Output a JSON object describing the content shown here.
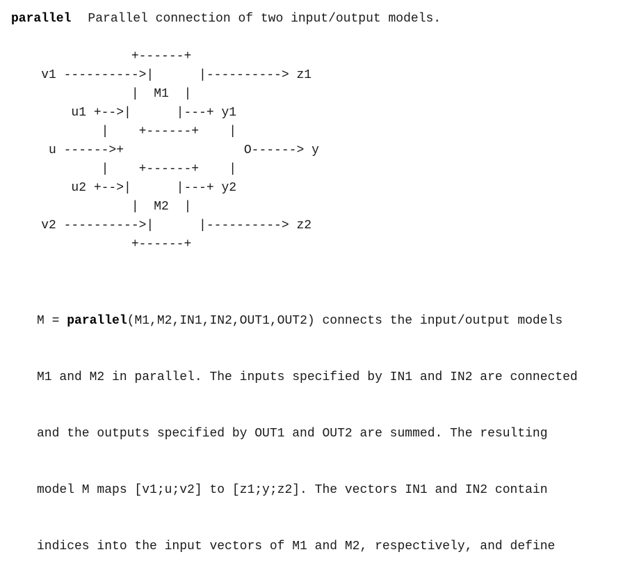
{
  "header": {
    "function_name": "parallel",
    "summary": "Parallel connection of two input/output models."
  },
  "diagram": {
    "lines": [
      "                +------+",
      "    v1 ---------->|      |----------> z1",
      "                |  M1  |",
      "        u1 +-->|      |---+ y1",
      "            |    +------+    |",
      "     u ------>+                O------> y",
      "            |    +------+    |",
      "        u2 +-->|      |---+ y2",
      "                |  M2  |",
      "    v2 ---------->|      |----------> z2",
      "                +------+"
    ]
  },
  "description": {
    "line1_prefix": "M = ",
    "line1_bold": "parallel",
    "line1_suffix": "(M1,M2,IN1,IN2,OUT1,OUT2) connects the input/output models",
    "line2": "M1 and M2 in parallel. The inputs specified by IN1 and IN2 are connected",
    "line3": "and the outputs specified by OUT1 and OUT2 are summed. The resulting",
    "line4": "model M maps [v1;u;v2] to [z1;y;z2]. The vectors IN1 and IN2 contain",
    "line5": "indices into the input vectors of M1 and M2, respectively, and define"
  }
}
